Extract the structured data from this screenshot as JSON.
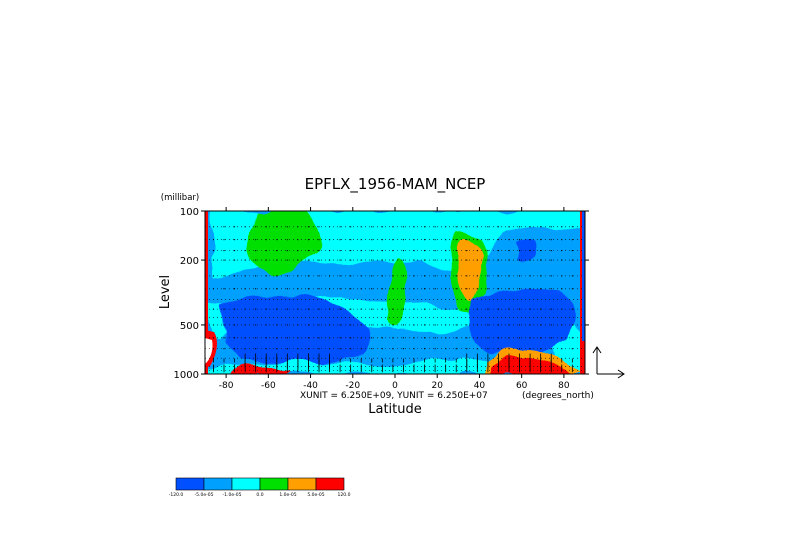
{
  "chart_data": {
    "type": "heatmap",
    "title": "EPFLX_1956-MAM_NCEP",
    "xlabel": "Latitude",
    "ylabel": "Level",
    "y_unit": "(millibar)",
    "x_unit": "(degrees_north)",
    "vector_scale": "XUNIT = 6.250E+09, YUNIT = 6.250E+07",
    "xlim": [
      -90,
      90
    ],
    "ylim": [
      1000,
      100
    ],
    "y_scale": "log",
    "x_ticks": [
      -80,
      -60,
      -40,
      -20,
      0,
      20,
      40,
      60,
      80
    ],
    "y_ticks": [
      100,
      200,
      500,
      1000
    ],
    "grid": "dotted pressure levels",
    "colorbar": {
      "boundaries": [
        "-120.0",
        "-5.0e-05",
        "-1.0e-05",
        "0.0",
        "1.0e-05",
        "5.0e-05",
        "120.0"
      ],
      "colors": [
        "#0050ff",
        "#00a0ff",
        "#00ffff",
        "#00e000",
        "#ffa000",
        "#ff0000"
      ]
    },
    "regions": [
      {
        "name": "positive maximum upper troposphere",
        "lat": [
          30,
          45
        ],
        "level": [
          150,
          450
        ],
        "class": "1.0e-05 to 5.0e-05"
      },
      {
        "name": "near-surface maximum",
        "lat": [
          40,
          75
        ],
        "level": [
          850,
          1000
        ],
        "class": "5.0e-05 to 120.0"
      },
      {
        "name": "near-surface maximum",
        "lat": [
          -80,
          -60
        ],
        "level": [
          900,
          1000
        ],
        "class": "5.0e-05 to 120.0"
      },
      {
        "name": "polar boundary",
        "lat": [
          -90,
          -88
        ],
        "level": [
          100,
          1000
        ],
        "class": "5.0e-05 to 120.0"
      }
    ]
  }
}
